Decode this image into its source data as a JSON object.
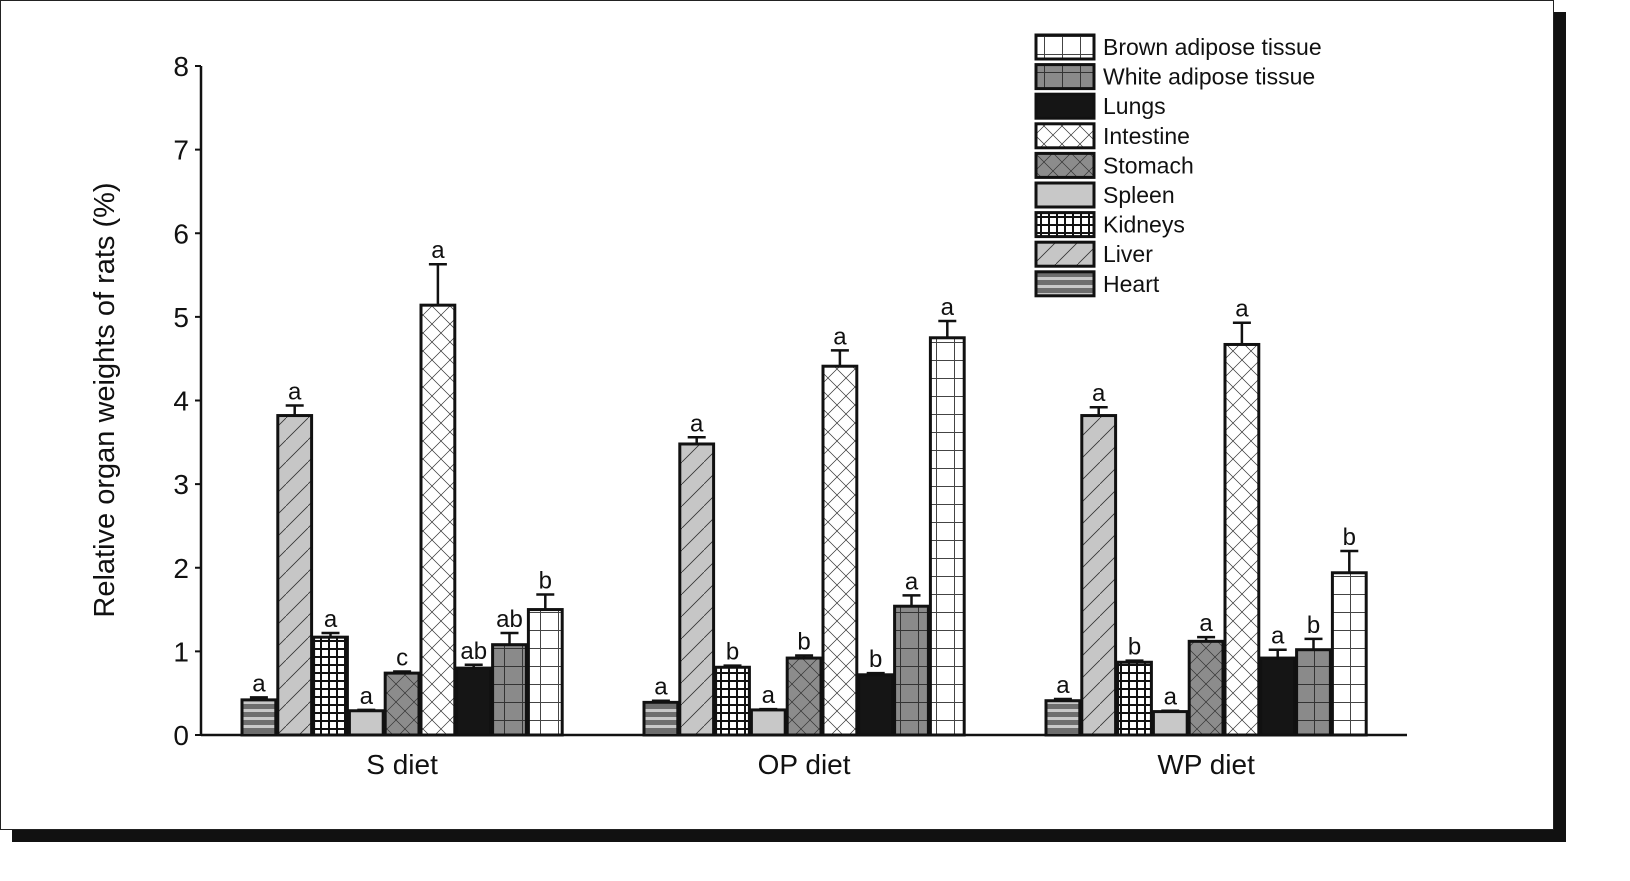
{
  "chart_data": {
    "type": "bar",
    "title": "",
    "xlabel": "",
    "ylabel": "Relative organ weights of rats (%)",
    "ylim": [
      0,
      8
    ],
    "yticks": [
      "0",
      "1",
      "2",
      "3",
      "4",
      "5",
      "6",
      "7",
      "8"
    ],
    "grid": false,
    "legend_placement": "top-right",
    "categories": [
      "S diet",
      "OP diet",
      "WP diet"
    ],
    "series": [
      {
        "name": "Heart",
        "pattern": "horizontal-stripes",
        "values": [
          0.42,
          0.39,
          0.41
        ],
        "errors": [
          0.03,
          0.02,
          0.02
        ],
        "letters": [
          "a",
          "a",
          "a"
        ]
      },
      {
        "name": "Liver",
        "pattern": "diagonal-lines-gray",
        "values": [
          3.82,
          3.48,
          3.82
        ],
        "errors": [
          0.12,
          0.08,
          0.1
        ],
        "letters": [
          "a",
          "a",
          "a"
        ]
      },
      {
        "name": "Kidneys",
        "pattern": "black-grid",
        "values": [
          1.17,
          0.81,
          0.87
        ],
        "errors": [
          0.05,
          0.02,
          0.02
        ],
        "letters": [
          "a",
          "b",
          "b"
        ]
      },
      {
        "name": "Spleen",
        "pattern": "solid-light-gray",
        "values": [
          0.29,
          0.3,
          0.28
        ],
        "errors": [
          0.01,
          0.01,
          0.01
        ],
        "letters": [
          "a",
          "a",
          "a"
        ]
      },
      {
        "name": "Stomach",
        "pattern": "crosshatch-gray",
        "values": [
          0.74,
          0.92,
          1.12
        ],
        "errors": [
          0.02,
          0.03,
          0.05
        ],
        "letters": [
          "c",
          "b",
          "a"
        ]
      },
      {
        "name": "Intestine",
        "pattern": "crosshatch-white",
        "values": [
          5.14,
          4.41,
          4.67
        ],
        "errors": [
          0.49,
          0.19,
          0.26
        ],
        "letters": [
          "a",
          "a",
          "a"
        ]
      },
      {
        "name": "Lungs",
        "pattern": "solid-black",
        "values": [
          0.8,
          0.72,
          0.92
        ],
        "errors": [
          0.04,
          0.02,
          0.1
        ],
        "letters": [
          "ab",
          "b",
          "a"
        ]
      },
      {
        "name": "White adipose tissue",
        "pattern": "grid-gray",
        "values": [
          1.08,
          1.54,
          1.02
        ],
        "errors": [
          0.14,
          0.13,
          0.13
        ],
        "letters": [
          "ab",
          "a",
          "b"
        ]
      },
      {
        "name": "Brown adipose tissue",
        "pattern": "grid-white",
        "values": [
          1.5,
          4.75,
          1.94
        ],
        "errors": [
          0.18,
          0.2,
          0.26
        ],
        "letters": [
          "b",
          "a",
          "b"
        ]
      }
    ],
    "legend_order": [
      "Brown adipose tissue",
      "White adipose tissue",
      "Lungs",
      "Intestine",
      "Stomach",
      "Spleen",
      "Kidneys",
      "Liver",
      "Heart"
    ]
  }
}
